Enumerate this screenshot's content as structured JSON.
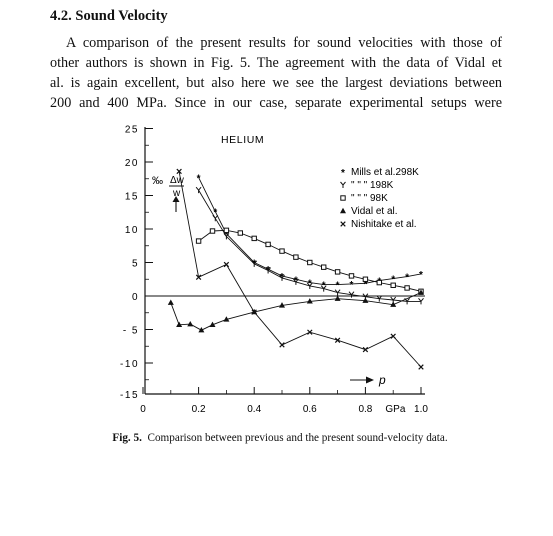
{
  "section": {
    "heading": "4.2. Sound Velocity"
  },
  "paragraph": {
    "lines": [
      "A comparison of the present results for sound velocities with those of",
      "other authors is shown in Fig. 5. The agreement with the data of Vidal et",
      "al. is again excellent, but also here we see the largest deviations between",
      "200 and 400 MPa. Since in our case, separate experimental setups were"
    ]
  },
  "figure": {
    "caption_label": "Fig. 5.",
    "caption_text": "Comparison between previous and the present sound-velocity data."
  },
  "chart_data": {
    "type": "line",
    "title": "HELIUM",
    "ylabel_unit": "‰",
    "ylabel_symbol": "Δw / w",
    "xlabel": "p",
    "x_ticks": [
      "0",
      "0.2",
      "0.4",
      "0.6",
      "0.8",
      "1.0"
    ],
    "x_unit": "GPa",
    "y_ticks": [
      "25",
      "20",
      "15",
      "10",
      "5",
      "0",
      "- 5",
      "-10",
      "-15"
    ],
    "xlim": [
      -0.02,
      1.03
    ],
    "ylim": [
      -15,
      25
    ],
    "legend": [
      {
        "marker": "*",
        "label": "Mills et al.298K"
      },
      {
        "marker": "Y",
        "label": "\"      \"     \"  198K"
      },
      {
        "marker": "□",
        "label": "\"      \"     \"   98K"
      },
      {
        "marker": "▲",
        "label": "Vidal et al."
      },
      {
        "marker": "x",
        "label": "Nishitake et al."
      }
    ],
    "series": [
      {
        "name": "Mills et al.298K",
        "marker": "star",
        "x": [
          0.2,
          0.26,
          0.3,
          0.4,
          0.45,
          0.5,
          0.55,
          0.6,
          0.65,
          0.7,
          0.75,
          0.8,
          0.85,
          0.9,
          0.95,
          1.0
        ],
        "y": [
          17.7,
          12.6,
          9.3,
          5.0,
          4.0,
          3.0,
          2.5,
          2.0,
          1.7,
          1.7,
          1.8,
          1.9,
          2.3,
          2.6,
          2.9,
          3.3
        ]
      },
      {
        "name": "\"      \"     \"  198K",
        "marker": "y",
        "x": [
          0.2,
          0.26,
          0.3,
          0.4,
          0.45,
          0.5,
          0.55,
          0.6,
          0.65,
          0.7,
          0.75,
          0.8,
          0.85,
          0.9,
          0.95,
          1.0
        ],
        "y": [
          15.8,
          11.6,
          8.9,
          4.8,
          3.8,
          2.7,
          2.1,
          1.5,
          1.1,
          0.5,
          0.2,
          -0.1,
          -0.4,
          -0.6,
          -0.8,
          -0.8
        ]
      },
      {
        "name": "\"      \"     \"   98K",
        "marker": "square",
        "x": [
          0.2,
          0.25,
          0.3,
          0.35,
          0.4,
          0.45,
          0.5,
          0.55,
          0.6,
          0.65,
          0.7,
          0.75,
          0.8,
          0.85,
          0.9,
          0.95,
          1.0
        ],
        "y": [
          8.2,
          9.7,
          9.8,
          9.4,
          8.6,
          7.7,
          6.7,
          5.8,
          5.0,
          4.3,
          3.6,
          3.0,
          2.5,
          2.0,
          1.6,
          1.2,
          0.7
        ]
      },
      {
        "name": "Vidal et al.",
        "marker": "triangle",
        "x": [
          0.1,
          0.13,
          0.17,
          0.21,
          0.25,
          0.3,
          0.4,
          0.5,
          0.6,
          0.7,
          0.8,
          0.9,
          1.0
        ],
        "y": [
          -1.0,
          -4.3,
          -4.2,
          -5.1,
          -4.3,
          -3.5,
          -2.4,
          -1.4,
          -0.8,
          -0.4,
          -0.7,
          -1.3,
          0.5
        ]
      },
      {
        "name": "Nishitake et al.",
        "marker": "x",
        "x": [
          0.13,
          0.2,
          0.3,
          0.4,
          0.5,
          0.6,
          0.7,
          0.8,
          0.9,
          1.0
        ],
        "y": [
          18.6,
          2.8,
          4.7,
          -2.4,
          -7.3,
          -5.4,
          -6.6,
          -8.0,
          -6.0,
          -10.6
        ]
      }
    ]
  }
}
